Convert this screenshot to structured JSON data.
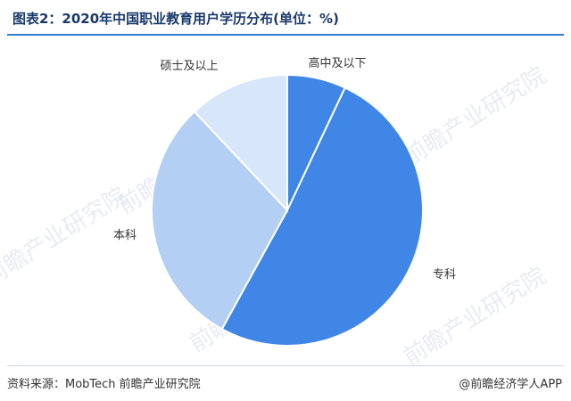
{
  "chart_data": {
    "type": "pie",
    "title": "图表2：2020年中国职业教育用户学历分布(单位：%)",
    "categories": [
      "高中及以下",
      "专科",
      "本科",
      "硕士及以上"
    ],
    "values": [
      7,
      51,
      30,
      12
    ],
    "colors": [
      "#3f86e6",
      "#3f86e6",
      "#b3cff3",
      "#d7e6f9"
    ],
    "legend": "none"
  },
  "footer": {
    "source": "资料来源：MobTech 前瞻产业研究院",
    "credit": "@前瞻经济学人APP"
  },
  "watermark": "前瞻产业研究院"
}
